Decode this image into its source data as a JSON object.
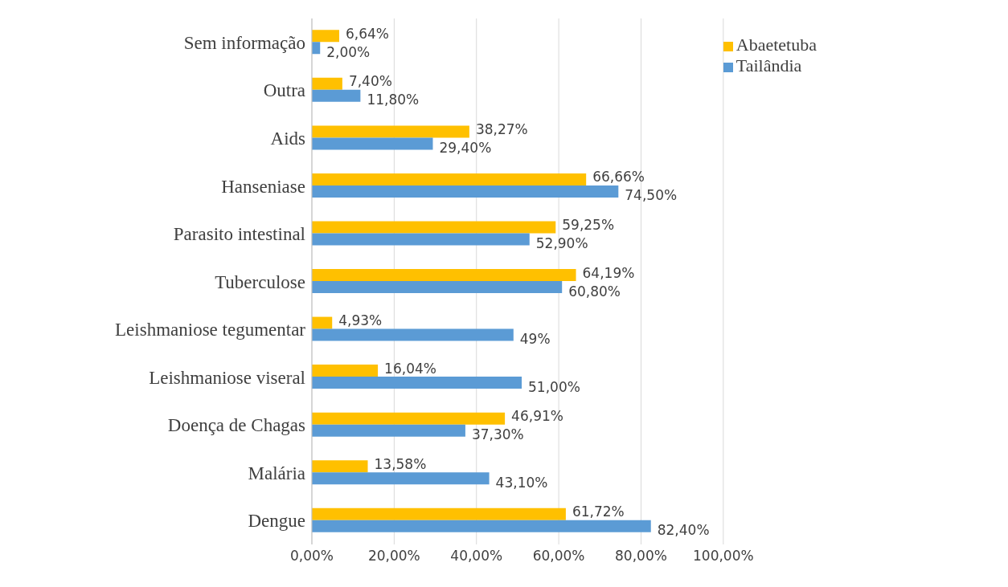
{
  "chart_data": {
    "type": "bar",
    "orientation": "horizontal",
    "categories": [
      "Sem informação",
      "Outra",
      "Aids",
      "Hanseniase",
      "Parasito intestinal",
      "Tuberculose",
      "Leishmaniose tegumentar",
      "Leishmaniose viseral",
      "Doença de Chagas",
      "Malária",
      "Dengue"
    ],
    "series": [
      {
        "name": "Abaetetuba",
        "color": "#ffc000",
        "values": [
          6.64,
          7.4,
          38.27,
          66.66,
          59.25,
          64.19,
          4.93,
          16.04,
          46.91,
          13.58,
          61.72
        ],
        "value_labels": [
          "6,64%",
          "7,40%",
          "38,27%",
          "66,66%",
          "59,25%",
          "64,19%",
          "4,93%",
          "16,04%",
          "46,91%",
          "13,58%",
          "61,72%"
        ]
      },
      {
        "name": "Tailândia",
        "color": "#5b9bd5",
        "values": [
          2,
          11.8,
          29.4,
          74.5,
          52.9,
          60.8,
          49,
          51,
          37.3,
          43.1,
          82.4
        ],
        "value_labels": [
          "2,00%",
          "11,80%",
          "29,40%",
          "74,50%",
          "52,90%",
          "60,80%",
          "49%",
          "51,00%",
          "37,30%",
          "43,10%",
          "82,40%"
        ]
      }
    ],
    "xlim": [
      0,
      100
    ],
    "xticks": [
      {
        "value": 0,
        "label": "0,00%"
      },
      {
        "value": 20,
        "label": "20,00%"
      },
      {
        "value": 40,
        "label": "40,00%"
      },
      {
        "value": 60,
        "label": "60,00%"
      },
      {
        "value": 80,
        "label": "80,00%"
      },
      {
        "value": 100,
        "label": "100,00%"
      }
    ],
    "grid": "x",
    "legend": "top right"
  }
}
